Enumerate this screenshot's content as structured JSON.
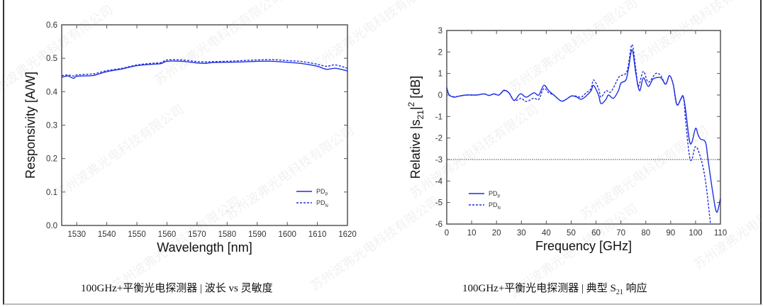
{
  "watermark": "苏州波弗光电科技有限公司",
  "captions": {
    "left": "100GHz+平衡光电探测器 | 波长 vs 灵敏度",
    "right_pre": "100GHz+平衡光电探测器 | 典型 S",
    "right_sub": "21",
    "right_post": " 响应"
  },
  "chart_data": [
    {
      "type": "line",
      "xlabel": "Wavelength  [nm]",
      "ylabel": "Responsivity  [A/W]",
      "xlim": [
        1525,
        1620
      ],
      "ylim": [
        0,
        0.6
      ],
      "xticks": [
        1530,
        1540,
        1550,
        1560,
        1570,
        1580,
        1590,
        1600,
        1610,
        1620
      ],
      "yticks": [
        "0.0",
        "0.1",
        "0.2",
        "0.3",
        "0.4",
        "0.5",
        "0.6"
      ],
      "grid": false,
      "legend": "bottom-right",
      "color": "#1f2fe0",
      "series": [
        {
          "name": "PD",
          "sub": "P",
          "style": "solid",
          "x": [
            1525,
            1527,
            1529,
            1530,
            1535,
            1537,
            1540,
            1545,
            1550,
            1555,
            1558,
            1560,
            1565,
            1570,
            1573,
            1575,
            1580,
            1585,
            1590,
            1595,
            1600,
            1605,
            1610,
            1613,
            1616,
            1620
          ],
          "y": [
            0.443,
            0.447,
            0.44,
            0.446,
            0.448,
            0.452,
            0.46,
            0.468,
            0.478,
            0.482,
            0.484,
            0.491,
            0.491,
            0.486,
            0.485,
            0.487,
            0.488,
            0.489,
            0.491,
            0.491,
            0.488,
            0.484,
            0.476,
            0.467,
            0.47,
            0.462
          ]
        },
        {
          "name": "PD",
          "sub": "N",
          "style": "dashed",
          "x": [
            1525,
            1527,
            1529,
            1530,
            1535,
            1537,
            1540,
            1545,
            1550,
            1555,
            1558,
            1560,
            1565,
            1570,
            1573,
            1575,
            1580,
            1585,
            1590,
            1595,
            1600,
            1605,
            1610,
            1613,
            1616,
            1620
          ],
          "y": [
            0.448,
            0.45,
            0.447,
            0.45,
            0.453,
            0.456,
            0.463,
            0.47,
            0.48,
            0.485,
            0.487,
            0.495,
            0.495,
            0.49,
            0.489,
            0.49,
            0.491,
            0.493,
            0.495,
            0.496,
            0.493,
            0.49,
            0.482,
            0.476,
            0.48,
            0.47
          ]
        }
      ]
    },
    {
      "type": "line",
      "xlabel": "Frequency  [GHz]",
      "ylabel_pre": "Relative |s",
      "ylabel_sub": "21",
      "ylabel_mid": "|",
      "ylabel_sup": "2",
      "ylabel_post": "  [dB]",
      "xlim": [
        0,
        110
      ],
      "ylim": [
        -6,
        3
      ],
      "xticks": [
        0,
        10,
        20,
        30,
        40,
        50,
        60,
        70,
        80,
        90,
        100,
        110
      ],
      "yticks": [
        -6,
        -5,
        -4,
        -3,
        -2,
        -1,
        0,
        1,
        2,
        3
      ],
      "reference_line": -3,
      "grid": false,
      "legend": "bottom-left",
      "color": "#1f2fe0",
      "series": [
        {
          "name": "PD",
          "sub": "P",
          "style": "solid",
          "x": [
            0,
            1,
            3,
            5,
            8,
            12,
            15,
            17,
            19,
            21,
            23,
            25,
            27,
            29,
            30,
            32,
            35,
            37,
            39,
            41,
            43,
            46,
            48,
            50,
            52,
            54,
            56,
            58,
            59,
            61,
            62,
            64,
            65,
            67,
            69,
            70,
            72,
            73,
            74.5,
            76,
            77.5,
            79,
            81,
            83,
            86,
            88,
            89.5,
            91,
            92.5,
            94,
            95,
            96,
            97.5,
            98.5,
            100,
            101,
            102,
            104,
            105,
            107,
            108.5,
            110
          ],
          "y": [
            0.35,
            0,
            -0.1,
            -0.05,
            0,
            0,
            0.05,
            -0.02,
            0.05,
            0,
            0.22,
            0.1,
            -0.25,
            0,
            0.05,
            -0.1,
            0.1,
            0,
            0.45,
            0.2,
            0,
            -0.28,
            -0.2,
            -0.05,
            -0.08,
            -0.2,
            -0.05,
            0.2,
            0.45,
            0,
            -0.4,
            -0.2,
            0,
            -0.15,
            0.2,
            0.55,
            0.7,
            1.2,
            2.1,
            1.0,
            0.2,
            0.8,
            0.4,
            0.75,
            0.8,
            0.5,
            0.9,
            0.5,
            -0.45,
            -0.2,
            -0.05,
            -0.7,
            -2.1,
            -2.2,
            -1.55,
            -1.85,
            -2.05,
            -2.2,
            -3.0,
            -4.6,
            -5.45,
            -4.8
          ]
        },
        {
          "name": "PD",
          "sub": "N",
          "style": "dashed",
          "x": [
            0,
            1,
            3,
            5,
            8,
            12,
            15,
            17,
            19,
            21,
            23,
            25,
            27,
            29,
            30,
            32,
            35,
            37,
            39,
            41,
            43,
            46,
            48,
            50,
            52,
            54,
            56,
            58,
            59,
            61,
            62,
            64,
            66,
            69,
            70,
            72,
            73,
            74.5,
            76,
            77,
            79,
            81,
            84,
            86,
            88,
            89.5,
            91,
            92.5,
            95,
            96,
            97.5,
            98.5,
            100,
            102,
            104,
            106
          ],
          "y": [
            0.3,
            0,
            -0.08,
            -0.05,
            0,
            0,
            0.05,
            -0.02,
            0.05,
            0,
            0.2,
            0.1,
            -0.25,
            -0.2,
            -0.15,
            -0.3,
            -0.15,
            -0.2,
            0.3,
            0.1,
            0,
            -0.28,
            -0.2,
            -0.05,
            -0.05,
            -0.1,
            0.1,
            0.3,
            0.7,
            0.3,
            -0.1,
            0.2,
            0.15,
            0.8,
            0.9,
            1.0,
            1.4,
            2.35,
            1.2,
            0.4,
            1.1,
            0.6,
            1.0,
            0.9,
            0.5,
            0.9,
            0.5,
            -0.45,
            -0.1,
            -1.2,
            -2.8,
            -3.0,
            -2.4,
            -2.9,
            -4.0,
            -6.0
          ]
        }
      ]
    }
  ]
}
